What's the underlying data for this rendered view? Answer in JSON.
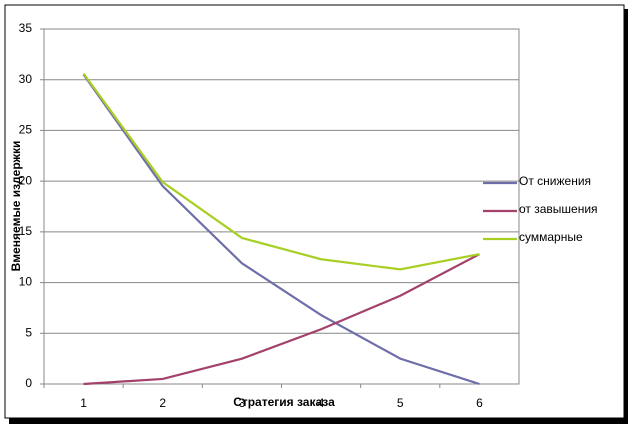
{
  "chart_data": {
    "type": "line",
    "y_label": "Вменяемые издержки",
    "x_label": "Стратегия заказа",
    "categories": [
      "1",
      "2",
      "3",
      "4",
      "5",
      "6"
    ],
    "series": [
      {
        "name": "От снижения",
        "color": "#6e6eaa",
        "values": [
          30.5,
          19.5,
          11.9,
          6.8,
          2.5,
          0
        ]
      },
      {
        "name": "от завышения",
        "color": "#a3406c",
        "values": [
          0,
          0.5,
          2.5,
          5.4,
          8.7,
          12.8
        ]
      },
      {
        "name": "суммарные",
        "color": "#a8cf24",
        "values": [
          30.6,
          19.9,
          14.4,
          12.3,
          11.3,
          12.8
        ]
      }
    ],
    "ylim": [
      0,
      35
    ],
    "yticks": [
      0,
      5,
      10,
      15,
      20,
      25,
      30,
      35
    ],
    "grid": true,
    "legend": "right"
  }
}
